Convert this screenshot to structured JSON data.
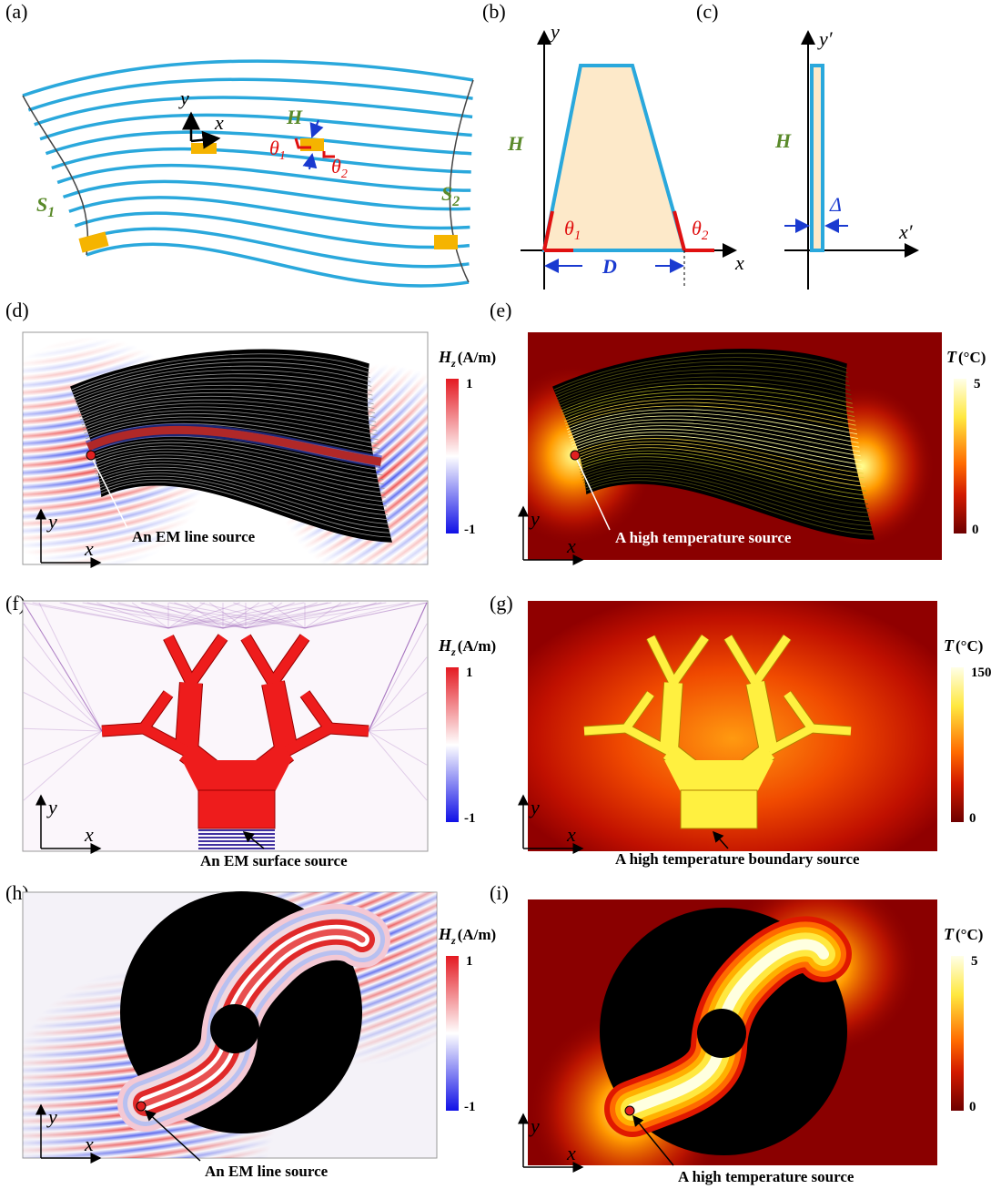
{
  "panels": {
    "a": {
      "label": "(a)",
      "x": "x",
      "y": "y",
      "H": "H",
      "theta1": {
        "base": "θ",
        "sub": "1"
      },
      "theta2": {
        "base": "θ",
        "sub": "2"
      },
      "S1": {
        "base": "S",
        "sub": "1"
      },
      "S2": {
        "base": "S",
        "sub": "2"
      }
    },
    "b": {
      "label": "(b)",
      "y": "y",
      "x": "x",
      "H": "H",
      "theta1": {
        "base": "θ",
        "sub": "1"
      },
      "theta2": {
        "base": "θ",
        "sub": "2"
      },
      "D": "D"
    },
    "c": {
      "label": "(c)",
      "y": "y′",
      "x": "x′",
      "H": "H",
      "delta": "Δ"
    },
    "d": {
      "label": "(d)",
      "colorbar": {
        "base": "H",
        "sub": "z",
        "unit": "(A/m)",
        "max": "1",
        "min": "-1"
      },
      "x": "x",
      "y": "y",
      "annotation": "An EM line source"
    },
    "e": {
      "label": "(e)",
      "colorbar": {
        "base": "T",
        "unit": "(°C)",
        "max": "5",
        "min": "0"
      },
      "x": "x",
      "y": "y",
      "annotation": "A high temperature source"
    },
    "f": {
      "label": "(f)",
      "colorbar": {
        "base": "H",
        "sub": "z",
        "unit": "(A/m)",
        "max": "1",
        "min": "-1"
      },
      "x": "x",
      "y": "y",
      "annotation": "An EM surface source"
    },
    "g": {
      "label": "(g)",
      "colorbar": {
        "base": "T",
        "unit": "(°C)",
        "max": "150",
        "min": "0"
      },
      "x": "x",
      "y": "y",
      "annotation": "A high temperature boundary source"
    },
    "h": {
      "label": "(h)",
      "colorbar": {
        "base": "H",
        "sub": "z",
        "unit": "(A/m)",
        "max": "1",
        "min": "-1"
      },
      "x": "x",
      "y": "y",
      "annotation": "An EM line source"
    },
    "i": {
      "label": "(i)",
      "colorbar": {
        "base": "T",
        "unit": "(°C)",
        "max": "5",
        "min": "0"
      },
      "x": "x",
      "y": "y",
      "annotation": "A high temperature source"
    }
  }
}
